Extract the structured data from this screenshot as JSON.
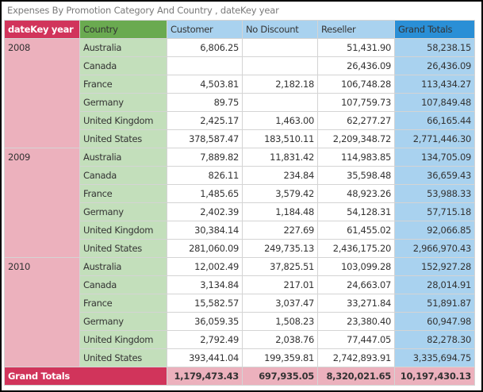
{
  "title": "Expenses By Promotion Category And Country , dateKey year",
  "headers": {
    "year": "dateKey year",
    "country": "Country",
    "customer": "Customer",
    "no_discount": "No Discount",
    "reseller": "Reseller",
    "grand_totals": "Grand Totals"
  },
  "colors": {
    "year_header": "#d1345b",
    "year_cell": "#ecb1bd",
    "country_header": "#6aaa50",
    "country_cell": "#c3dfbb",
    "value_header": "#a9d2ef",
    "grand_totals_header": "#2a8fd6"
  },
  "groups": [
    {
      "year": "2008",
      "rows": [
        {
          "country": "Australia",
          "customer": "6,806.25",
          "no_discount": "",
          "reseller": "51,431.90",
          "total": "58,238.15"
        },
        {
          "country": "Canada",
          "customer": "",
          "no_discount": "",
          "reseller": "26,436.09",
          "total": "26,436.09"
        },
        {
          "country": "France",
          "customer": "4,503.81",
          "no_discount": "2,182.18",
          "reseller": "106,748.28",
          "total": "113,434.27"
        },
        {
          "country": "Germany",
          "customer": "89.75",
          "no_discount": "",
          "reseller": "107,759.73",
          "total": "107,849.48"
        },
        {
          "country": "United Kingdom",
          "customer": "2,425.17",
          "no_discount": "1,463.00",
          "reseller": "62,277.27",
          "total": "66,165.44"
        },
        {
          "country": "United States",
          "customer": "378,587.47",
          "no_discount": "183,510.11",
          "reseller": "2,209,348.72",
          "total": "2,771,446.30"
        }
      ]
    },
    {
      "year": "2009",
      "rows": [
        {
          "country": "Australia",
          "customer": "7,889.82",
          "no_discount": "11,831.42",
          "reseller": "114,983.85",
          "total": "134,705.09"
        },
        {
          "country": "Canada",
          "customer": "826.11",
          "no_discount": "234.84",
          "reseller": "35,598.48",
          "total": "36,659.43"
        },
        {
          "country": "France",
          "customer": "1,485.65",
          "no_discount": "3,579.42",
          "reseller": "48,923.26",
          "total": "53,988.33"
        },
        {
          "country": "Germany",
          "customer": "2,402.39",
          "no_discount": "1,184.48",
          "reseller": "54,128.31",
          "total": "57,715.18"
        },
        {
          "country": "United Kingdom",
          "customer": "30,384.14",
          "no_discount": "227.69",
          "reseller": "61,455.02",
          "total": "92,066.85"
        },
        {
          "country": "United States",
          "customer": "281,060.09",
          "no_discount": "249,735.13",
          "reseller": "2,436,175.20",
          "total": "2,966,970.43"
        }
      ]
    },
    {
      "year": "2010",
      "rows": [
        {
          "country": "Australia",
          "customer": "12,002.49",
          "no_discount": "37,825.51",
          "reseller": "103,099.28",
          "total": "152,927.28"
        },
        {
          "country": "Canada",
          "customer": "3,134.84",
          "no_discount": "217.01",
          "reseller": "24,663.07",
          "total": "28,014.91"
        },
        {
          "country": "France",
          "customer": "15,582.57",
          "no_discount": "3,037.47",
          "reseller": "33,271.84",
          "total": "51,891.87"
        },
        {
          "country": "Germany",
          "customer": "36,059.35",
          "no_discount": "1,508.23",
          "reseller": "23,380.40",
          "total": "60,947.98"
        },
        {
          "country": "United Kingdom",
          "customer": "2,792.49",
          "no_discount": "2,038.76",
          "reseller": "77,447.05",
          "total": "82,278.30"
        },
        {
          "country": "United States",
          "customer": "393,441.04",
          "no_discount": "199,359.81",
          "reseller": "2,742,893.91",
          "total": "3,335,694.75"
        }
      ]
    }
  ],
  "totals": {
    "label": "Grand Totals",
    "customer": "1,179,473.43",
    "no_discount": "697,935.05",
    "reseller": "8,320,021.65",
    "total": "10,197,430.13"
  }
}
